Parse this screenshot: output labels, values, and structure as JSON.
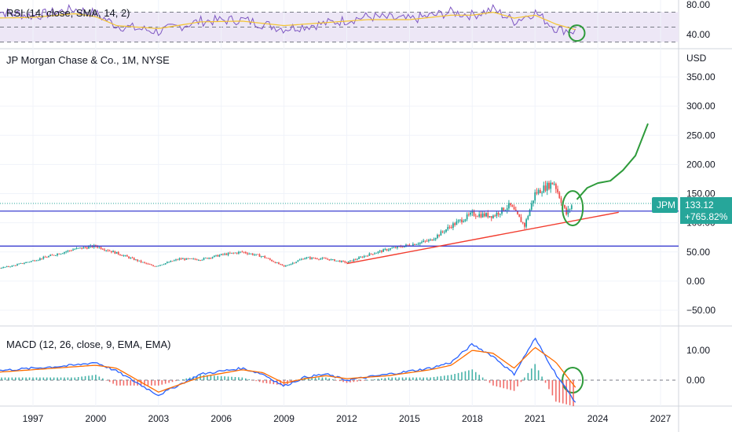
{
  "header": {
    "rsi_title": "RSI (14, close, SMA, 14, 2)",
    "main_title": "JP Morgan Chase & Co., 1M, NYSE",
    "macd_title": "MACD (12, 26, close, 9, EMA, EMA)",
    "currency": "USD"
  },
  "price_tag": {
    "symbol": "JPM",
    "price": "133.12",
    "change": "+765.82%",
    "color": "#26a69a"
  },
  "colors": {
    "up": "#26a69a",
    "down": "#ef5350",
    "hline": "#3b3fd1",
    "trend": "#f23c2e",
    "annotation": "#2e9b3b",
    "macd": "#2962ff",
    "signal": "#ff6d00",
    "rsi": "#7e57c2",
    "rsi_ma": "#f4c430",
    "rsi_band": "#ede7f6"
  },
  "chart_data": [
    {
      "type": "line",
      "panel": "rsi",
      "title": "RSI (14, close, SMA, 14, 2)",
      "y_ticks": [
        "80.00",
        "40.00"
      ],
      "bands": [
        70,
        50,
        30
      ],
      "x": [
        1995,
        1997,
        1999,
        2000,
        2001,
        2003,
        2005,
        2007,
        2009,
        2011,
        2013,
        2015,
        2017,
        2018,
        2019,
        2020,
        2021,
        2022,
        2023
      ],
      "series": [
        {
          "values": [
            72,
            65,
            74,
            68,
            52,
            44,
            58,
            60,
            48,
            55,
            64,
            60,
            70,
            66,
            74,
            58,
            70,
            48,
            44
          ]
        },
        {
          "values": [
            62,
            63,
            68,
            64,
            52,
            48,
            57,
            58,
            52,
            56,
            60,
            60,
            66,
            66,
            70,
            62,
            66,
            54,
            46
          ]
        }
      ]
    },
    {
      "type": "candlestick",
      "panel": "price",
      "title": "JP Morgan Chase & Co., 1M, NYSE",
      "y_label": "USD",
      "y_ticks": [
        "350.00",
        "300.00",
        "250.00",
        "200.00",
        "150.00",
        "100.00",
        "50.00",
        "0.00",
        "−50.00"
      ],
      "x_ticks": [
        "1997",
        "2000",
        "2003",
        "2006",
        "2009",
        "2012",
        "2015",
        "2018",
        "2021",
        "2024",
        "2027"
      ],
      "x": [
        1995.0,
        1996.0,
        1997.0,
        1998.0,
        1999.0,
        2000.0,
        2001.0,
        2002.0,
        2002.8,
        2004.0,
        2005.0,
        2006.0,
        2007.0,
        2008.0,
        2009.0,
        2010.0,
        2011.0,
        2012.0,
        2013.0,
        2014.0,
        2015.0,
        2016.0,
        2017.0,
        2018.0,
        2019.0,
        2019.8,
        2020.5,
        2021.0,
        2021.9,
        2022.5,
        2022.8
      ],
      "close": [
        20,
        26,
        35,
        45,
        55,
        60,
        48,
        35,
        25,
        38,
        37,
        45,
        50,
        42,
        25,
        40,
        38,
        32,
        45,
        55,
        62,
        70,
        95,
        115,
        112,
        130,
        95,
        150,
        170,
        115,
        133
      ],
      "horizontal_levels": [
        120,
        60
      ],
      "trendline": {
        "from": [
          2012,
          30
        ],
        "to": [
          2025,
          118
        ]
      },
      "last_price": 133.12,
      "projection": [
        [
          2023.0,
          140
        ],
        [
          2023.5,
          160
        ],
        [
          2024.0,
          168
        ],
        [
          2024.6,
          172
        ],
        [
          2025.2,
          190
        ],
        [
          2025.8,
          215
        ],
        [
          2026.4,
          270
        ]
      ]
    },
    {
      "type": "line",
      "panel": "macd",
      "title": "MACD (12, 26, close, 9, EMA, EMA)",
      "y_ticks": [
        "10.00",
        "0.00"
      ],
      "x": [
        1995,
        1997,
        1999,
        2000,
        2001,
        2002,
        2003,
        2005,
        2007,
        2008,
        2009,
        2010,
        2011,
        2012,
        2014,
        2016,
        2017,
        2018,
        2019,
        2020,
        2021,
        2022,
        2023
      ],
      "series": [
        {
          "values": [
            3,
            4,
            5,
            6,
            3,
            -1,
            -5,
            2,
            4,
            2,
            -2,
            1,
            2,
            0,
            2,
            4,
            6,
            12,
            8,
            2,
            14,
            2,
            -8
          ]
        },
        {
          "values": [
            2.5,
            3.5,
            4.5,
            5,
            4,
            0,
            -4,
            1,
            3.5,
            2.5,
            -1,
            0.5,
            1.5,
            0.5,
            1.5,
            3.5,
            5,
            10,
            9,
            4,
            11,
            6,
            -3
          ]
        }
      ]
    }
  ]
}
